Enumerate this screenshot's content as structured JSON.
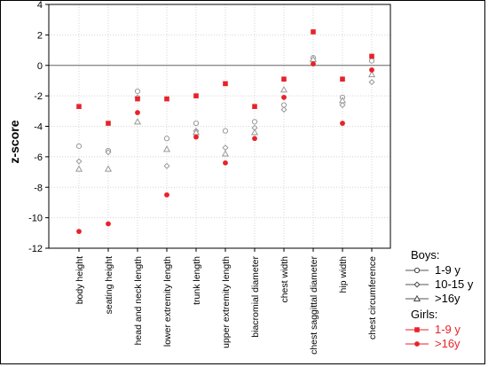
{
  "chart_data": {
    "type": "scatter",
    "ylabel": "z-score",
    "ylim": [
      -12,
      4
    ],
    "yticks": [
      4,
      2,
      0,
      -2,
      -4,
      -6,
      -8,
      -10,
      -12
    ],
    "grid": true,
    "reference_line": 0,
    "categories": [
      "body height",
      "seating height",
      "head and neck length",
      "lower extremity length",
      "trunk length",
      "upper extremity length",
      "biacromial diameter",
      "chest width",
      "chest saggittal diameter",
      "hip width",
      "chest circumference"
    ],
    "legend": {
      "groups": [
        {
          "title": "Boys:",
          "entries": [
            {
              "key": "boys_1_9",
              "label": "1-9 y"
            },
            {
              "key": "boys_10_15",
              "label": "10-15 y"
            },
            {
              "key": "boys_16",
              "label": ">16y"
            }
          ]
        },
        {
          "title": "Girls:",
          "entries": [
            {
              "key": "girls_1_9",
              "label": "1-9 y"
            },
            {
              "key": "girls_16",
              "label": ">16y"
            }
          ]
        }
      ]
    },
    "series": [
      {
        "key": "boys_1_9",
        "marker": "open-circle",
        "color": "#999999",
        "values": [
          -5.3,
          -5.6,
          -1.7,
          -4.8,
          -3.8,
          -4.3,
          -3.7,
          -2.6,
          0.5,
          -2.1,
          0.3
        ]
      },
      {
        "key": "boys_10_15",
        "marker": "open-diamond",
        "color": "#999999",
        "values": [
          -6.3,
          -5.7,
          -2.1,
          -6.6,
          -4.3,
          -5.4,
          -4.1,
          -2.9,
          0.3,
          -2.6,
          -1.1
        ]
      },
      {
        "key": "boys_16",
        "marker": "open-triangle",
        "color": "#999999",
        "values": [
          -6.8,
          -6.8,
          -3.7,
          -5.5,
          -4.4,
          -5.8,
          -4.4,
          -1.6,
          0.4,
          -2.3,
          -0.6
        ]
      },
      {
        "key": "girls_1_9",
        "marker": "filled-square",
        "color": "#e8222a",
        "values": [
          -2.7,
          -3.8,
          -2.2,
          -2.2,
          -2.0,
          -1.2,
          -2.7,
          -0.9,
          2.2,
          -0.9,
          0.6
        ]
      },
      {
        "key": "girls_16",
        "marker": "filled-circle",
        "color": "#e8222a",
        "values": [
          -10.9,
          -10.4,
          -3.1,
          -8.5,
          -4.7,
          -6.4,
          -4.8,
          -2.1,
          0.1,
          -3.8,
          -0.3
        ]
      }
    ]
  }
}
